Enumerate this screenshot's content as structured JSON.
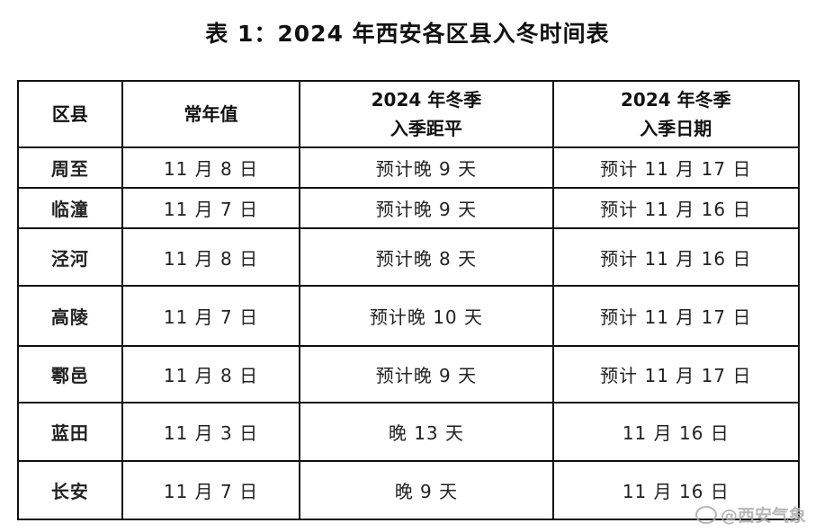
{
  "title": "表 1：2024 年西安各区县入冬时间表",
  "table": {
    "headers": [
      "区县",
      "常年值",
      "2024 年冬季\n入季距平",
      "2024 年冬季\n入季日期"
    ],
    "rows": [
      [
        "周至",
        "11 月 8 日",
        "预计晚 9 天",
        "预计 11 月 17 日"
      ],
      [
        "临潼",
        "11 月 7 日",
        "预计晚 9 天",
        "预计 11 月 16 日"
      ],
      [
        "泾河",
        "11 月 8 日",
        "预计晚 8 天",
        "预计 11 月 16 日"
      ],
      [
        "高陵",
        "11 月 7 日",
        "预计晚 10 天",
        "预计 11 月 17 日"
      ],
      [
        "鄠邑",
        "11 月 8 日",
        "预计晚 9 天",
        "预计 11 月 17 日"
      ],
      [
        "蓝田",
        "11 月 3 日",
        "晚 13 天",
        "11 月 16 日"
      ],
      [
        "长安",
        "11 月 7 日",
        "晚 9 天",
        "11 月 16 日"
      ]
    ]
  },
  "watermark": {
    "text": "@西安气象",
    "icon": "weibo-logo-icon"
  }
}
